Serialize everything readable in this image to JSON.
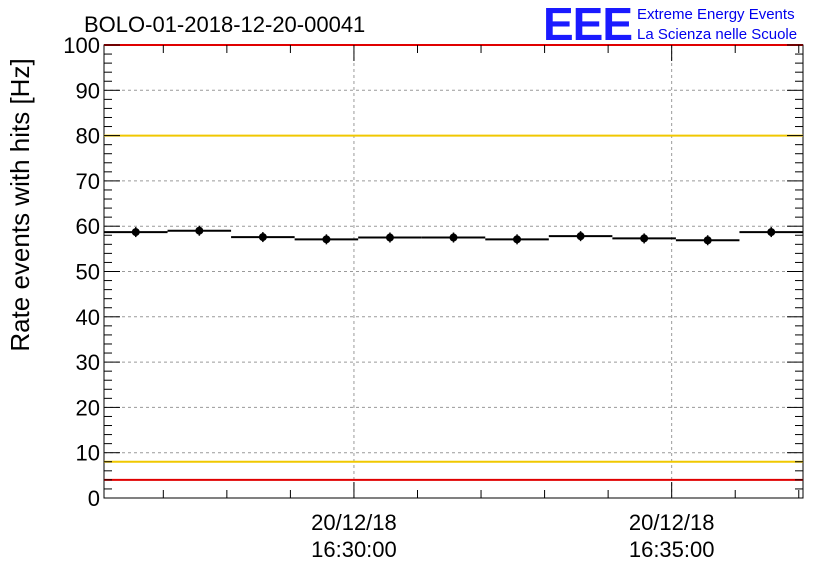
{
  "header": {
    "run_title": "BOLO-01-2018-12-20-00041",
    "logo_text": "EEE",
    "logo_line1": "Extreme Energy Events",
    "logo_line2": "La Scienza nelle Scuole"
  },
  "colors": {
    "upper_warning": "#f0c800",
    "lower_warning": "#f0c800",
    "upper_limit": "#e00000",
    "lower_limit": "#e00000",
    "markers": "#000000",
    "logo": "#0000ee"
  },
  "chart_data": {
    "type": "scatter",
    "title": "BOLO-01-2018-12-20-00041",
    "ylabel": "Rate events with hits [Hz]",
    "xlabel": "",
    "ylim": [
      0,
      100
    ],
    "yticks": [
      "0",
      "10",
      "20",
      "30",
      "40",
      "50",
      "60",
      "70",
      "80",
      "90",
      "100"
    ],
    "xlim": [
      "16:26:04",
      "16:37:04"
    ],
    "xticks": [
      {
        "time": "16:30:00",
        "date": "20/12/18",
        "label_date": "20/12/18",
        "label_time": "16:30:00"
      },
      {
        "time": "16:35:00",
        "date": "20/12/18",
        "label_date": "20/12/18",
        "label_time": "16:35:00"
      }
    ],
    "grid": true,
    "reference_lines": [
      {
        "y": 100,
        "color": "#e00000"
      },
      {
        "y": 80,
        "color": "#f0c800"
      },
      {
        "y": 8,
        "color": "#f0c800"
      },
      {
        "y": 4,
        "color": "#e00000"
      }
    ],
    "series": [
      {
        "x": [
          "16:26:34",
          "16:27:34",
          "16:28:34",
          "16:29:34",
          "16:30:34",
          "16:31:34",
          "16:32:34",
          "16:33:34",
          "16:34:34",
          "16:35:34",
          "16:36:34"
        ],
        "bin_width_seconds": 60,
        "values": [
          58.7,
          59.0,
          57.6,
          57.1,
          57.5,
          57.5,
          57.1,
          57.8,
          57.3,
          56.9,
          58.7
        ]
      }
    ]
  }
}
